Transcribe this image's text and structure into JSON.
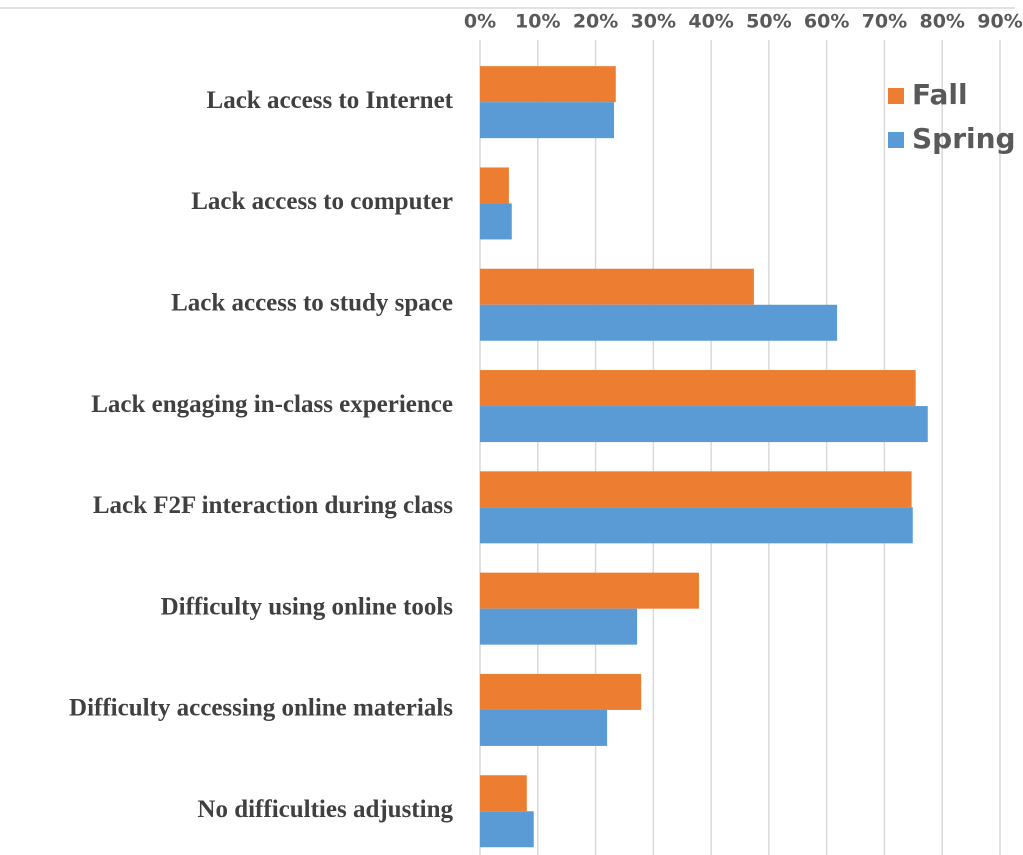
{
  "chart_data": {
    "type": "hbar",
    "categories": [
      "Lack access to Internet",
      "Lack access to computer",
      "Lack access to study space",
      "Lack engaging in-class experience",
      "Lack F2F interaction during class",
      "Difficulty using online tools",
      "Difficulty accessing online materials",
      "No difficulties adjusting"
    ],
    "series": [
      {
        "name": "Fall",
        "color": "#ED7D31",
        "values": [
          23.5,
          5.0,
          47.4,
          75.4,
          74.7,
          37.9,
          27.9,
          8.1
        ]
      },
      {
        "name": "Spring",
        "color": "#5B9BD5",
        "values": [
          23.2,
          5.5,
          61.8,
          77.5,
          74.9,
          27.2,
          22.0,
          9.3
        ]
      }
    ],
    "xlim": [
      0,
      90
    ],
    "xticks": [
      {
        "value": 0,
        "label": "0%"
      },
      {
        "value": 10,
        "label": "10%"
      },
      {
        "value": 20,
        "label": "20%"
      },
      {
        "value": 30,
        "label": "30%"
      },
      {
        "value": 40,
        "label": "40%"
      },
      {
        "value": 50,
        "label": "50%"
      },
      {
        "value": 60,
        "label": "60%"
      },
      {
        "value": 70,
        "label": "70%"
      },
      {
        "value": 80,
        "label": "80%"
      },
      {
        "value": 90,
        "label": "90%"
      }
    ],
    "grid": true,
    "legend": "top-right"
  }
}
